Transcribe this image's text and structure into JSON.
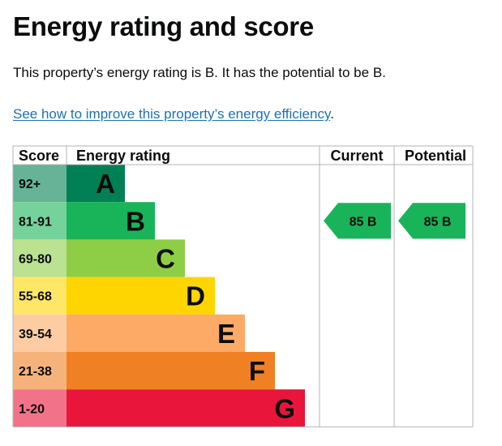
{
  "heading": "Energy rating and score",
  "summary": "This property’s energy rating is B. It has the potential to be B.",
  "improve_link": "See how to improve this property’s energy efficiency",
  "improve_suffix": ".",
  "table": {
    "headers": {
      "score": "Score",
      "rating": "Energy rating",
      "current": "Current",
      "potential": "Potential"
    },
    "bands": [
      {
        "score": "92+",
        "letter": "A",
        "color": "#008054",
        "score_bg": "#66b398"
      },
      {
        "score": "81-91",
        "letter": "B",
        "color": "#19b459",
        "score_bg": "#75d29b"
      },
      {
        "score": "69-80",
        "letter": "C",
        "color": "#8dce46",
        "score_bg": "#bbe290"
      },
      {
        "score": "55-68",
        "letter": "D",
        "color": "#ffd500",
        "score_bg": "#ffe666"
      },
      {
        "score": "39-54",
        "letter": "E",
        "color": "#fcaa65",
        "score_bg": "#fdcca3"
      },
      {
        "score": "21-38",
        "letter": "F",
        "color": "#ef8023",
        "score_bg": "#f5b37b"
      },
      {
        "score": "1-20",
        "letter": "G",
        "color": "#e9153b",
        "score_bg": "#f27389"
      }
    ],
    "current": {
      "score": "85",
      "band": "B",
      "color": "#19b459"
    },
    "potential": {
      "score": "85",
      "band": "B",
      "color": "#19b459"
    }
  }
}
